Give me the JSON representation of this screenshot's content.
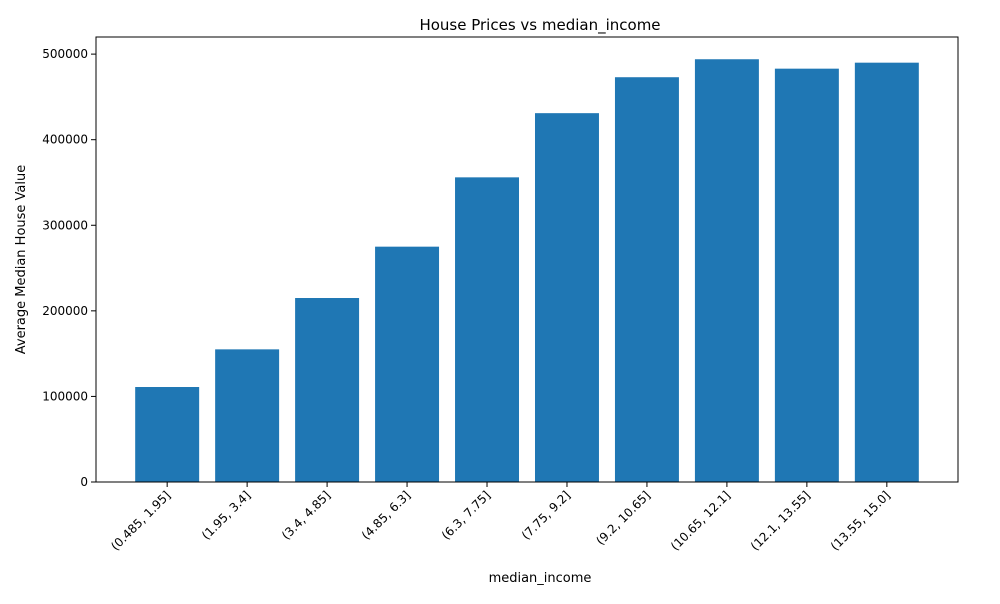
{
  "chart_data": {
    "type": "bar",
    "title": "House Prices vs median_income",
    "xlabel": "median_income",
    "ylabel": "Average Median House Value",
    "categories": [
      "(0.485, 1.95]",
      "(1.95, 3.4]",
      "(3.4, 4.85]",
      "(4.85, 6.3]",
      "(6.3, 7.75]",
      "(7.75, 9.2]",
      "(9.2, 10.65]",
      "(10.65, 12.1]",
      "(12.1, 13.55]",
      "(13.55, 15.0]"
    ],
    "values": [
      111000,
      155000,
      215000,
      275000,
      356000,
      431000,
      473000,
      494000,
      483000,
      490000
    ],
    "ylim": [
      0,
      520000
    ],
    "yticks": [
      0,
      100000,
      200000,
      300000,
      400000,
      500000
    ],
    "ytick_labels": [
      "0",
      "100000",
      "200000",
      "300000",
      "400000",
      "500000"
    ],
    "bar_color": "#1f77b4",
    "grid": false,
    "legend": "none"
  }
}
